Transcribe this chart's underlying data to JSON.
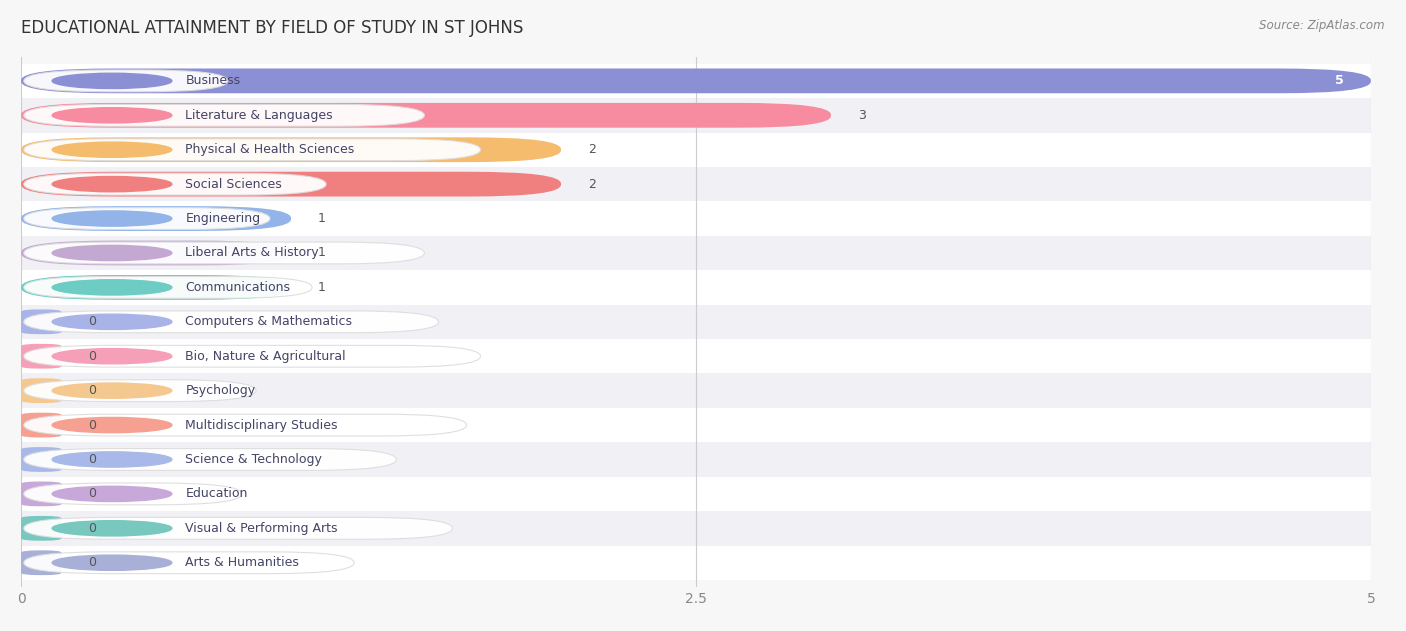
{
  "title": "EDUCATIONAL ATTAINMENT BY FIELD OF STUDY IN ST JOHNS",
  "source": "Source: ZipAtlas.com",
  "categories": [
    "Business",
    "Literature & Languages",
    "Physical & Health Sciences",
    "Social Sciences",
    "Engineering",
    "Liberal Arts & History",
    "Communications",
    "Computers & Mathematics",
    "Bio, Nature & Agricultural",
    "Psychology",
    "Multidisciplinary Studies",
    "Science & Technology",
    "Education",
    "Visual & Performing Arts",
    "Arts & Humanities"
  ],
  "values": [
    5,
    3,
    2,
    2,
    1,
    1,
    1,
    0,
    0,
    0,
    0,
    0,
    0,
    0,
    0
  ],
  "bar_colors": [
    "#8B8FD4",
    "#F78CA0",
    "#F5BC6E",
    "#F08080",
    "#93B4E8",
    "#C3A8D1",
    "#6DCCC4",
    "#A8B4E8",
    "#F5A0B8",
    "#F5C890",
    "#F5A090",
    "#A8B8E8",
    "#C8A8D8",
    "#78C8C0",
    "#A8B0D8"
  ],
  "xlim": [
    0,
    5
  ],
  "xticks": [
    0,
    2.5,
    5
  ],
  "bar_height": 0.72,
  "background_color": "#f7f7f7",
  "title_fontsize": 12,
  "label_fontsize": 9,
  "value_fontsize": 9
}
